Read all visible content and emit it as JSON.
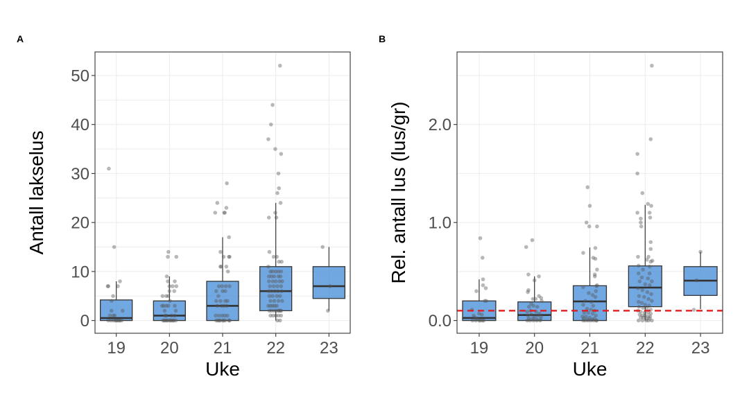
{
  "chart_data": [
    {
      "type": "box",
      "panel_label": "A",
      "title": "",
      "xlabel": "Uke",
      "ylabel": "Antall lakselus",
      "categories": [
        "19",
        "20",
        "21",
        "22",
        "23"
      ],
      "ylim": [
        -2.6,
        54.8
      ],
      "yticks": [
        0,
        10,
        20,
        30,
        40,
        50
      ],
      "ytick_labels": [
        "0",
        "10",
        "20",
        "30",
        "40",
        "50"
      ],
      "grid": true,
      "fill_color": "#4a90d9",
      "boxes": [
        {
          "category": "19",
          "whisker_low": 0,
          "q1": 0,
          "median": 0.5,
          "q3": 4.2,
          "whisker_high": 8
        },
        {
          "category": "20",
          "whisker_low": 0,
          "q1": 0,
          "median": 1,
          "q3": 4,
          "whisker_high": 9
        },
        {
          "category": "21",
          "whisker_low": 0,
          "q1": 0,
          "median": 3,
          "q3": 8,
          "whisker_high": 17
        },
        {
          "category": "22",
          "whisker_low": 0,
          "q1": 2,
          "median": 6,
          "q3": 11,
          "whisker_high": 24
        },
        {
          "category": "23",
          "whisker_low": 2,
          "q1": 4.5,
          "median": 7,
          "q3": 11,
          "whisker_high": 15
        }
      ],
      "points": [
        {
          "category": "19",
          "jitter": [
            -0.14,
            -0.04,
            0.07,
            -0.16,
            -0.15,
            0.03,
            -0.06,
            -0.09,
            -0.09,
            0.12,
            -0.12,
            -0.06,
            -0.03,
            0.0,
            0.05,
            -0.15,
            -0.1,
            -0.05,
            -0.01,
            0.03,
            0.07,
            0.1
          ],
          "y": [
            31,
            15,
            8,
            7,
            7,
            7,
            5,
            4,
            2,
            2,
            1,
            1,
            1,
            0,
            0,
            0,
            0,
            0,
            0,
            0,
            0,
            0
          ]
        },
        {
          "category": "20",
          "jitter": [
            -0.02,
            -0.03,
            0.13,
            -0.05,
            -0.03,
            0.1,
            0.0,
            0.06,
            0.0,
            0.13,
            0.09,
            -0.13,
            -0.06,
            -0.02,
            0.01,
            -0.14,
            -0.11,
            -0.06,
            -0.02,
            0.1,
            -0.09,
            0.12,
            -0.08,
            -0.06,
            0.04,
            0.1,
            -0.12,
            -0.08,
            -0.04,
            0.0,
            0.04,
            0.08,
            0.12,
            -0.1,
            -0.05,
            0.02,
            0.07
          ],
          "y": [
            14,
            13,
            13,
            9,
            8,
            8,
            7,
            7,
            6,
            7,
            6,
            5,
            5,
            5,
            4,
            3,
            3,
            3,
            3,
            3,
            2,
            2,
            1,
            1,
            1,
            1,
            0,
            0,
            0,
            0,
            0,
            0,
            0,
            0,
            0,
            0,
            0
          ]
        },
        {
          "category": "21",
          "jitter": [
            0.08,
            -0.1,
            0.07,
            -0.14,
            0.03,
            0.04,
            0.12,
            0.13,
            -0.04,
            0.02,
            0.12,
            -0.04,
            -0.03,
            0.07,
            0.1,
            -0.07,
            -0.01,
            0.06,
            0.13,
            -0.12,
            0.0,
            0.05,
            -0.08,
            -0.12,
            -0.04,
            0.05,
            0.09,
            -0.1,
            -0.02,
            0.03,
            0.08,
            -0.13,
            -0.07,
            -0.01,
            0.04,
            0.09,
            0.13,
            -0.06,
            0.02,
            -0.12,
            -0.09,
            -0.05,
            0.0,
            0.05,
            0.12
          ],
          "y": [
            28,
            24,
            23,
            22,
            22,
            22,
            17,
            13,
            14,
            13,
            13,
            11,
            11,
            11,
            10,
            7,
            7,
            7,
            7,
            6,
            6,
            6,
            5,
            4,
            4,
            4,
            4,
            3,
            3,
            3,
            3,
            1,
            1,
            1,
            1,
            1,
            0,
            0,
            0,
            0,
            0,
            0,
            0,
            0,
            0
          ]
        },
        {
          "category": "22",
          "jitter": [
            0.08,
            -0.06,
            -0.09,
            -0.14,
            -0.01,
            0.1,
            0.05,
            0.06,
            0.03,
            0.09,
            -0.01,
            -0.13,
            0.01,
            -0.12,
            -0.04,
            0.02,
            0.06,
            0.11,
            -0.14,
            -0.1,
            -0.06,
            0.0,
            0.05,
            0.1,
            -0.13,
            -0.08,
            -0.03,
            0.05,
            0.09,
            -0.13,
            -0.06,
            0.0,
            0.07,
            0.12,
            -0.11,
            -0.04,
            0.03,
            0.1,
            -0.13,
            -0.08,
            -0.02,
            0.04,
            0.11,
            -0.12,
            -0.06,
            0.02,
            0.08,
            -0.1,
            -0.03,
            0.05,
            0.12,
            -0.14,
            -0.1,
            -0.06,
            -0.02,
            0.02,
            0.06,
            0.1,
            -0.12,
            -0.08,
            -0.03,
            0.01,
            0.05,
            0.09,
            -0.1,
            -0.05,
            0.0,
            0.05,
            0.1,
            0.03,
            0.08
          ],
          "y": [
            52,
            44,
            40,
            37,
            35,
            34,
            30,
            27,
            26,
            24,
            22,
            21,
            21,
            14,
            13,
            13,
            12,
            12,
            11,
            10,
            10,
            10,
            10,
            10,
            9,
            9,
            9,
            9,
            9,
            8,
            8,
            8,
            8,
            8,
            7,
            7,
            7,
            7,
            6,
            6,
            6,
            6,
            6,
            5,
            5,
            5,
            5,
            4,
            4,
            4,
            4,
            3,
            3,
            3,
            3,
            3,
            2,
            2,
            2,
            2,
            2,
            2,
            2,
            2,
            1,
            1,
            1,
            1,
            1,
            0,
            0
          ]
        },
        {
          "category": "23",
          "jitter": [
            -0.12,
            0.02,
            -0.02
          ],
          "y": [
            15,
            7,
            2
          ]
        }
      ]
    },
    {
      "type": "box",
      "panel_label": "B",
      "title": "",
      "xlabel": "Uke",
      "ylabel": "Rel. antall lus (lus/gr)",
      "categories": [
        "19",
        "20",
        "21",
        "22",
        "23"
      ],
      "ylim": [
        -0.13,
        2.74
      ],
      "yticks": [
        0.0,
        1.0,
        2.0
      ],
      "ytick_labels": [
        "0.0",
        "1.0",
        "2.0"
      ],
      "grid": true,
      "fill_color": "#4a90d9",
      "reference_line": {
        "y": 0.1,
        "color": "#e31a1c",
        "style": "dashed"
      },
      "boxes": [
        {
          "category": "19",
          "whisker_low": 0,
          "q1": 0,
          "median": 0.026,
          "q3": 0.2,
          "whisker_high": 0.42
        },
        {
          "category": "20",
          "whisker_low": 0,
          "q1": 0,
          "median": 0.056,
          "q3": 0.19,
          "whisker_high": 0.45
        },
        {
          "category": "21",
          "whisker_low": 0,
          "q1": 0,
          "median": 0.195,
          "q3": 0.355,
          "whisker_high": 0.745
        },
        {
          "category": "22",
          "whisker_low": 0,
          "q1": 0.141,
          "median": 0.336,
          "q3": 0.557,
          "whisker_high": 1.18
        },
        {
          "category": "23",
          "whisker_low": 0.117,
          "q1": 0.256,
          "median": 0.407,
          "q3": 0.55,
          "whisker_high": 0.7
        }
      ],
      "points": [
        {
          "category": "19",
          "jitter": [
            0.02,
            0.06,
            0.07,
            0.07,
            0.12,
            -0.05,
            0.13,
            0.1,
            -0.13,
            0.0,
            -0.1,
            0.05,
            -0.08,
            -0.03,
            0.02,
            0.08,
            -0.12,
            -0.06,
            0.0,
            0.06
          ],
          "y": [
            0.84,
            0.64,
            0.42,
            0.36,
            0.33,
            0.3,
            0.2,
            0.2,
            0.11,
            0.07,
            0.05,
            0.06,
            0.03,
            0.02,
            0.0,
            0.0,
            0.0,
            0.0,
            0.0,
            0.0
          ]
        },
        {
          "category": "20",
          "jitter": [
            -0.04,
            -0.15,
            0.08,
            -0.11,
            0.0,
            0.08,
            -0.11,
            -0.12,
            -0.03,
            0.02,
            0.12,
            -0.06,
            0.13,
            -0.1,
            -0.02,
            0.05,
            -0.13,
            -0.07,
            0.03,
            0.09,
            -0.12,
            -0.06,
            0.0,
            0.06,
            0.12,
            -0.1,
            -0.03,
            0.04,
            0.11,
            -0.13,
            -0.08,
            -0.02,
            0.04,
            0.1
          ],
          "y": [
            0.82,
            0.75,
            0.45,
            0.47,
            0.41,
            0.25,
            0.31,
            0.29,
            0.22,
            0.22,
            0.23,
            0.17,
            0.2,
            0.14,
            0.15,
            0.14,
            0.09,
            0.1,
            0.09,
            0.07,
            0.05,
            0.06,
            0.04,
            0.05,
            0.04,
            0.02,
            0.02,
            0.01,
            0.01,
            0.0,
            0.0,
            0.0,
            0.0,
            0.0
          ]
        },
        {
          "category": "21",
          "jitter": [
            -0.04,
            0.0,
            -0.06,
            -0.01,
            0.13,
            -0.12,
            0.1,
            0.06,
            0.1,
            0.13,
            0.09,
            0.09,
            0.13,
            0.12,
            0.11,
            -0.12,
            -0.02,
            0.05,
            0.1,
            -0.08,
            0.03,
            -0.12,
            0.06,
            -0.05,
            0.02,
            0.09,
            -0.1,
            -0.03,
            0.05,
            0.11,
            -0.13,
            -0.07,
            0.0,
            0.08,
            -0.11,
            -0.04,
            0.04,
            0.12,
            -0.12,
            -0.08,
            -0.03,
            0.02,
            0.07,
            0.12
          ],
          "y": [
            1.36,
            1.17,
            1.0,
            0.96,
            0.96,
            0.69,
            0.74,
            0.64,
            0.63,
            0.52,
            0.47,
            0.45,
            0.36,
            0.35,
            0.3,
            0.34,
            0.28,
            0.26,
            0.24,
            0.2,
            0.19,
            0.16,
            0.15,
            0.12,
            0.11,
            0.1,
            0.08,
            0.08,
            0.07,
            0.05,
            0.04,
            0.04,
            0.03,
            0.02,
            0.02,
            0.01,
            0.01,
            0.0,
            0.0,
            0.0,
            0.0,
            0.0,
            0.0,
            0.0
          ]
        },
        {
          "category": "22",
          "jitter": [
            0.12,
            0.1,
            -0.14,
            -0.14,
            -0.05,
            0.05,
            0.11,
            0.08,
            -0.14,
            -0.08,
            -0.08,
            0.09,
            -0.07,
            0.1,
            0.1,
            0.06,
            -0.13,
            0.03,
            0.1,
            0.13,
            -0.12,
            0.08,
            -0.04,
            -0.12,
            0.08,
            -0.06,
            0.05,
            0.12,
            -0.1,
            0.0,
            0.08,
            -0.13,
            -0.05,
            0.04,
            0.11,
            -0.11,
            -0.02,
            0.06,
            0.12,
            -0.12,
            -0.06,
            0.0,
            0.07,
            -0.11,
            -0.04,
            0.03,
            0.1,
            -0.13,
            -0.08,
            -0.01,
            0.05,
            0.1,
            -0.1,
            -0.05,
            0.0,
            0.05,
            0.09,
            -0.08,
            -0.03,
            0.02,
            0.08,
            -0.12,
            -0.05,
            0.02,
            0.06,
            0.12
          ],
          "y": [
            2.6,
            1.85,
            1.7,
            1.5,
            1.3,
            1.19,
            1.17,
            1.1,
            1.1,
            1.0,
            1.04,
            1.05,
            0.96,
            0.8,
            0.73,
            0.65,
            0.65,
            0.62,
            0.6,
            0.61,
            0.56,
            0.55,
            0.52,
            0.48,
            0.48,
            0.44,
            0.43,
            0.4,
            0.4,
            0.37,
            0.36,
            0.33,
            0.31,
            0.29,
            0.27,
            0.25,
            0.24,
            0.22,
            0.2,
            0.19,
            0.18,
            0.16,
            0.15,
            0.14,
            0.13,
            0.12,
            0.11,
            0.1,
            0.09,
            0.08,
            0.08,
            0.07,
            0.06,
            0.05,
            0.05,
            0.04,
            0.04,
            0.03,
            0.03,
            0.02,
            0.02,
            0.0,
            0.0,
            0.0,
            0.0,
            0.0
          ]
        },
        {
          "category": "23",
          "jitter": [
            0.0,
            -0.07,
            -0.12
          ],
          "y": [
            0.7,
            0.41,
            0.11
          ]
        }
      ]
    }
  ]
}
